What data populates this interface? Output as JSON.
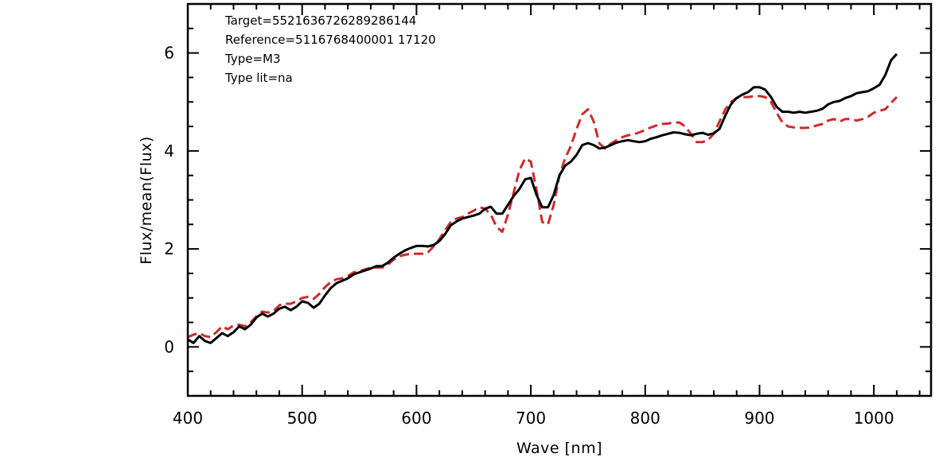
{
  "chart_data": {
    "type": "line",
    "xlabel": "Wave [nm]",
    "ylabel": "Flux/mean(Flux)",
    "xlim": [
      400,
      1050
    ],
    "ylim": [
      -1,
      7
    ],
    "x_ticks": [
      400,
      500,
      600,
      700,
      800,
      900,
      1000
    ],
    "y_ticks": [
      0,
      2,
      4,
      6
    ],
    "grid": false,
    "annotations": [
      "Target=5521636726289286144",
      "Reference=5116768400001 17120",
      "Type=M3",
      "Type lit=na"
    ],
    "series": [
      {
        "color": "#000000",
        "style": "solid",
        "points": [
          [
            400,
            0.15
          ],
          [
            405,
            0.08
          ],
          [
            410,
            0.22
          ],
          [
            415,
            0.12
          ],
          [
            420,
            0.08
          ],
          [
            425,
            0.18
          ],
          [
            430,
            0.28
          ],
          [
            435,
            0.22
          ],
          [
            440,
            0.3
          ],
          [
            445,
            0.42
          ],
          [
            450,
            0.36
          ],
          [
            455,
            0.45
          ],
          [
            460,
            0.6
          ],
          [
            465,
            0.68
          ],
          [
            470,
            0.62
          ],
          [
            475,
            0.68
          ],
          [
            480,
            0.78
          ],
          [
            485,
            0.82
          ],
          [
            490,
            0.75
          ],
          [
            495,
            0.82
          ],
          [
            500,
            0.93
          ],
          [
            505,
            0.9
          ],
          [
            510,
            0.8
          ],
          [
            515,
            0.88
          ],
          [
            520,
            1.05
          ],
          [
            525,
            1.2
          ],
          [
            530,
            1.3
          ],
          [
            535,
            1.35
          ],
          [
            540,
            1.4
          ],
          [
            545,
            1.48
          ],
          [
            550,
            1.52
          ],
          [
            555,
            1.56
          ],
          [
            560,
            1.6
          ],
          [
            565,
            1.65
          ],
          [
            570,
            1.65
          ],
          [
            575,
            1.72
          ],
          [
            580,
            1.82
          ],
          [
            585,
            1.9
          ],
          [
            590,
            1.97
          ],
          [
            595,
            2.02
          ],
          [
            600,
            2.06
          ],
          [
            605,
            2.06
          ],
          [
            610,
            2.05
          ],
          [
            615,
            2.08
          ],
          [
            620,
            2.16
          ],
          [
            625,
            2.3
          ],
          [
            630,
            2.48
          ],
          [
            635,
            2.56
          ],
          [
            640,
            2.62
          ],
          [
            645,
            2.65
          ],
          [
            650,
            2.68
          ],
          [
            655,
            2.72
          ],
          [
            660,
            2.82
          ],
          [
            665,
            2.86
          ],
          [
            670,
            2.72
          ],
          [
            675,
            2.72
          ],
          [
            680,
            2.9
          ],
          [
            685,
            3.08
          ],
          [
            690,
            3.22
          ],
          [
            695,
            3.42
          ],
          [
            700,
            3.45
          ],
          [
            705,
            3.1
          ],
          [
            710,
            2.85
          ],
          [
            715,
            2.85
          ],
          [
            720,
            3.1
          ],
          [
            725,
            3.5
          ],
          [
            730,
            3.7
          ],
          [
            735,
            3.78
          ],
          [
            740,
            3.92
          ],
          [
            745,
            4.12
          ],
          [
            750,
            4.16
          ],
          [
            755,
            4.12
          ],
          [
            760,
            4.05
          ],
          [
            765,
            4.07
          ],
          [
            770,
            4.12
          ],
          [
            775,
            4.17
          ],
          [
            780,
            4.2
          ],
          [
            785,
            4.22
          ],
          [
            790,
            4.2
          ],
          [
            795,
            4.18
          ],
          [
            800,
            4.2
          ],
          [
            805,
            4.25
          ],
          [
            810,
            4.28
          ],
          [
            815,
            4.32
          ],
          [
            820,
            4.35
          ],
          [
            825,
            4.38
          ],
          [
            830,
            4.37
          ],
          [
            835,
            4.34
          ],
          [
            840,
            4.32
          ],
          [
            845,
            4.35
          ],
          [
            850,
            4.37
          ],
          [
            855,
            4.33
          ],
          [
            860,
            4.36
          ],
          [
            865,
            4.45
          ],
          [
            870,
            4.72
          ],
          [
            875,
            4.95
          ],
          [
            880,
            5.08
          ],
          [
            885,
            5.15
          ],
          [
            890,
            5.2
          ],
          [
            895,
            5.3
          ],
          [
            900,
            5.3
          ],
          [
            905,
            5.25
          ],
          [
            910,
            5.1
          ],
          [
            915,
            4.9
          ],
          [
            920,
            4.8
          ],
          [
            925,
            4.8
          ],
          [
            930,
            4.78
          ],
          [
            935,
            4.8
          ],
          [
            940,
            4.78
          ],
          [
            945,
            4.8
          ],
          [
            950,
            4.82
          ],
          [
            955,
            4.86
          ],
          [
            960,
            4.95
          ],
          [
            965,
            5.0
          ],
          [
            970,
            5.02
          ],
          [
            975,
            5.08
          ],
          [
            980,
            5.12
          ],
          [
            985,
            5.18
          ],
          [
            990,
            5.2
          ],
          [
            995,
            5.22
          ],
          [
            1000,
            5.28
          ],
          [
            1005,
            5.35
          ],
          [
            1010,
            5.55
          ],
          [
            1015,
            5.85
          ],
          [
            1020,
            5.98
          ]
        ]
      },
      {
        "color": "#cc2b2b",
        "style": "dashed",
        "points": [
          [
            400,
            0.2
          ],
          [
            405,
            0.25
          ],
          [
            410,
            0.28
          ],
          [
            415,
            0.22
          ],
          [
            420,
            0.2
          ],
          [
            425,
            0.3
          ],
          [
            430,
            0.42
          ],
          [
            435,
            0.36
          ],
          [
            440,
            0.44
          ],
          [
            445,
            0.45
          ],
          [
            450,
            0.42
          ],
          [
            455,
            0.5
          ],
          [
            460,
            0.62
          ],
          [
            465,
            0.72
          ],
          [
            470,
            0.7
          ],
          [
            475,
            0.73
          ],
          [
            480,
            0.85
          ],
          [
            485,
            0.88
          ],
          [
            490,
            0.88
          ],
          [
            495,
            0.93
          ],
          [
            500,
            1.0
          ],
          [
            505,
            1.02
          ],
          [
            510,
            0.98
          ],
          [
            515,
            1.08
          ],
          [
            520,
            1.22
          ],
          [
            525,
            1.32
          ],
          [
            530,
            1.38
          ],
          [
            535,
            1.4
          ],
          [
            540,
            1.45
          ],
          [
            545,
            1.52
          ],
          [
            550,
            1.55
          ],
          [
            555,
            1.58
          ],
          [
            560,
            1.62
          ],
          [
            565,
            1.62
          ],
          [
            570,
            1.62
          ],
          [
            575,
            1.68
          ],
          [
            580,
            1.78
          ],
          [
            585,
            1.85
          ],
          [
            590,
            1.88
          ],
          [
            595,
            1.9
          ],
          [
            600,
            1.9
          ],
          [
            605,
            1.9
          ],
          [
            610,
            1.93
          ],
          [
            615,
            2.05
          ],
          [
            620,
            2.2
          ],
          [
            625,
            2.38
          ],
          [
            630,
            2.55
          ],
          [
            635,
            2.62
          ],
          [
            640,
            2.65
          ],
          [
            645,
            2.72
          ],
          [
            650,
            2.78
          ],
          [
            655,
            2.85
          ],
          [
            660,
            2.82
          ],
          [
            665,
            2.7
          ],
          [
            670,
            2.45
          ],
          [
            675,
            2.35
          ],
          [
            680,
            2.7
          ],
          [
            685,
            3.15
          ],
          [
            690,
            3.6
          ],
          [
            695,
            3.85
          ],
          [
            700,
            3.78
          ],
          [
            705,
            3.2
          ],
          [
            710,
            2.55
          ],
          [
            715,
            2.5
          ],
          [
            720,
            2.9
          ],
          [
            725,
            3.5
          ],
          [
            730,
            3.85
          ],
          [
            735,
            4.1
          ],
          [
            740,
            4.45
          ],
          [
            745,
            4.75
          ],
          [
            750,
            4.85
          ],
          [
            755,
            4.6
          ],
          [
            760,
            4.15
          ],
          [
            765,
            4.05
          ],
          [
            770,
            4.15
          ],
          [
            775,
            4.22
          ],
          [
            780,
            4.28
          ],
          [
            785,
            4.32
          ],
          [
            790,
            4.34
          ],
          [
            795,
            4.38
          ],
          [
            800,
            4.43
          ],
          [
            805,
            4.48
          ],
          [
            810,
            4.52
          ],
          [
            815,
            4.55
          ],
          [
            820,
            4.56
          ],
          [
            825,
            4.58
          ],
          [
            830,
            4.58
          ],
          [
            835,
            4.5
          ],
          [
            840,
            4.35
          ],
          [
            845,
            4.18
          ],
          [
            850,
            4.18
          ],
          [
            855,
            4.22
          ],
          [
            860,
            4.35
          ],
          [
            865,
            4.6
          ],
          [
            870,
            4.85
          ],
          [
            875,
            5.0
          ],
          [
            880,
            5.08
          ],
          [
            885,
            5.1
          ],
          [
            890,
            5.1
          ],
          [
            895,
            5.12
          ],
          [
            900,
            5.12
          ],
          [
            905,
            5.1
          ],
          [
            910,
            5.0
          ],
          [
            915,
            4.78
          ],
          [
            920,
            4.58
          ],
          [
            925,
            4.5
          ],
          [
            930,
            4.48
          ],
          [
            935,
            4.47
          ],
          [
            940,
            4.47
          ],
          [
            945,
            4.48
          ],
          [
            950,
            4.52
          ],
          [
            955,
            4.55
          ],
          [
            960,
            4.62
          ],
          [
            965,
            4.65
          ],
          [
            970,
            4.6
          ],
          [
            975,
            4.65
          ],
          [
            980,
            4.65
          ],
          [
            985,
            4.62
          ],
          [
            990,
            4.65
          ],
          [
            995,
            4.7
          ],
          [
            1000,
            4.78
          ],
          [
            1005,
            4.82
          ],
          [
            1010,
            4.85
          ],
          [
            1015,
            4.98
          ],
          [
            1020,
            5.1
          ]
        ]
      }
    ]
  }
}
